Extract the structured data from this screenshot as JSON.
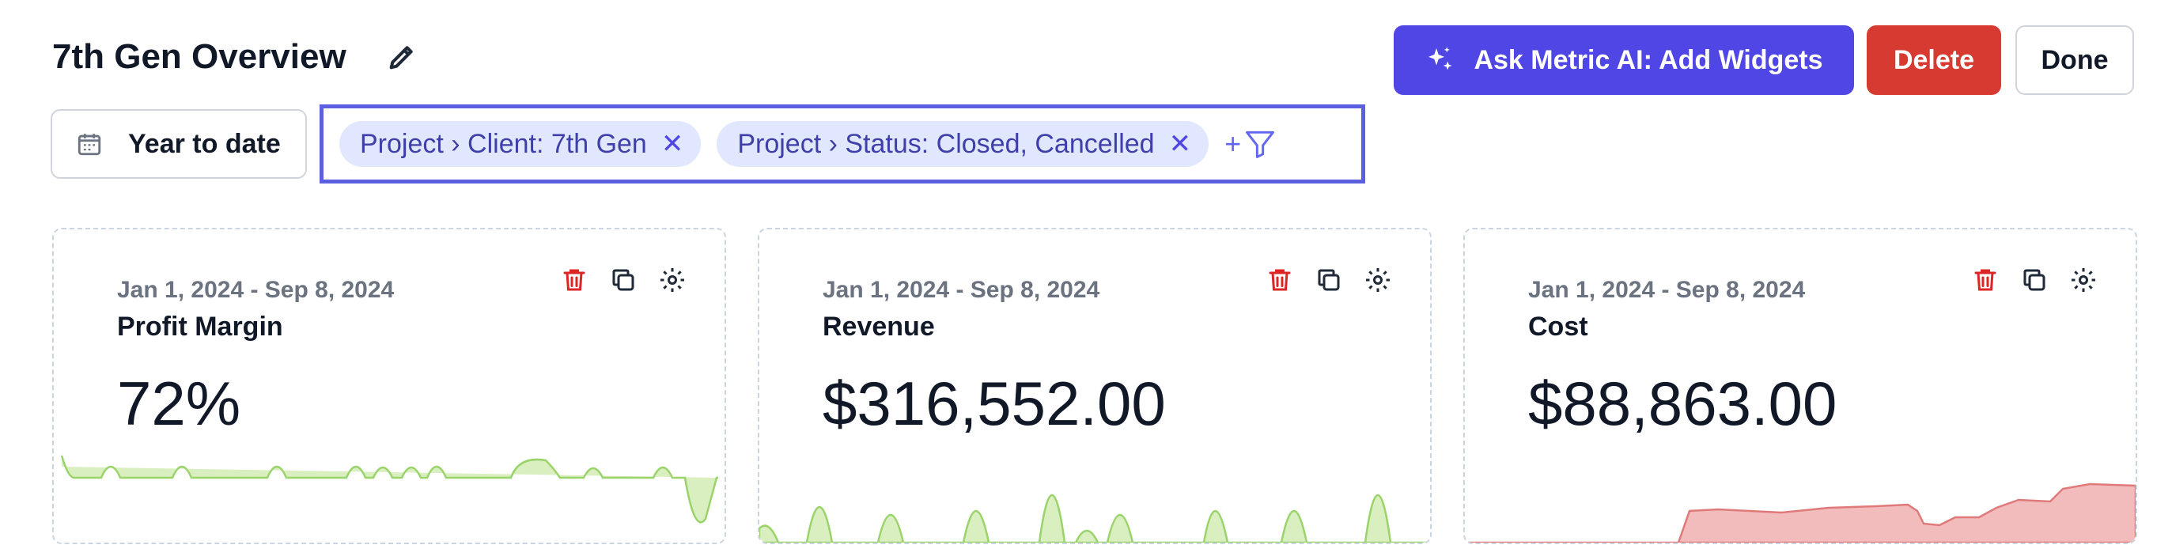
{
  "header": {
    "title": "7th Gen Overview",
    "ai_button_label": "Ask Metric AI: Add Widgets",
    "delete_label": "Delete",
    "done_label": "Done"
  },
  "date_range": {
    "label": "Year to date"
  },
  "filters": [
    {
      "label": "Project › Client: 7th Gen"
    },
    {
      "label": "Project › Status: Closed, Cancelled"
    }
  ],
  "add_filter_label": "+",
  "cards": [
    {
      "range": "Jan 1, 2024 - Sep 8, 2024",
      "title": "Profit Margin",
      "value": "72%"
    },
    {
      "range": "Jan 1, 2024 - Sep 8, 2024",
      "title": "Revenue",
      "value": "$316,552.00"
    },
    {
      "range": "Jan 1, 2024 - Sep 8, 2024",
      "title": "Cost",
      "value": "$88,863.00"
    }
  ],
  "colors": {
    "accent": "#4f46e5",
    "delete": "#d63a31",
    "chip_bg": "#e0e7ff",
    "positive_fill": "#d9efbf",
    "positive_line": "#9bd36b",
    "cost_fill": "#f3bcbc",
    "cost_line": "#e07a7a"
  },
  "icons": [
    "pencil-icon",
    "sparkles-icon",
    "calendar-icon",
    "close-icon",
    "filter-icon",
    "trash-icon",
    "copy-icon",
    "gear-icon"
  ]
}
